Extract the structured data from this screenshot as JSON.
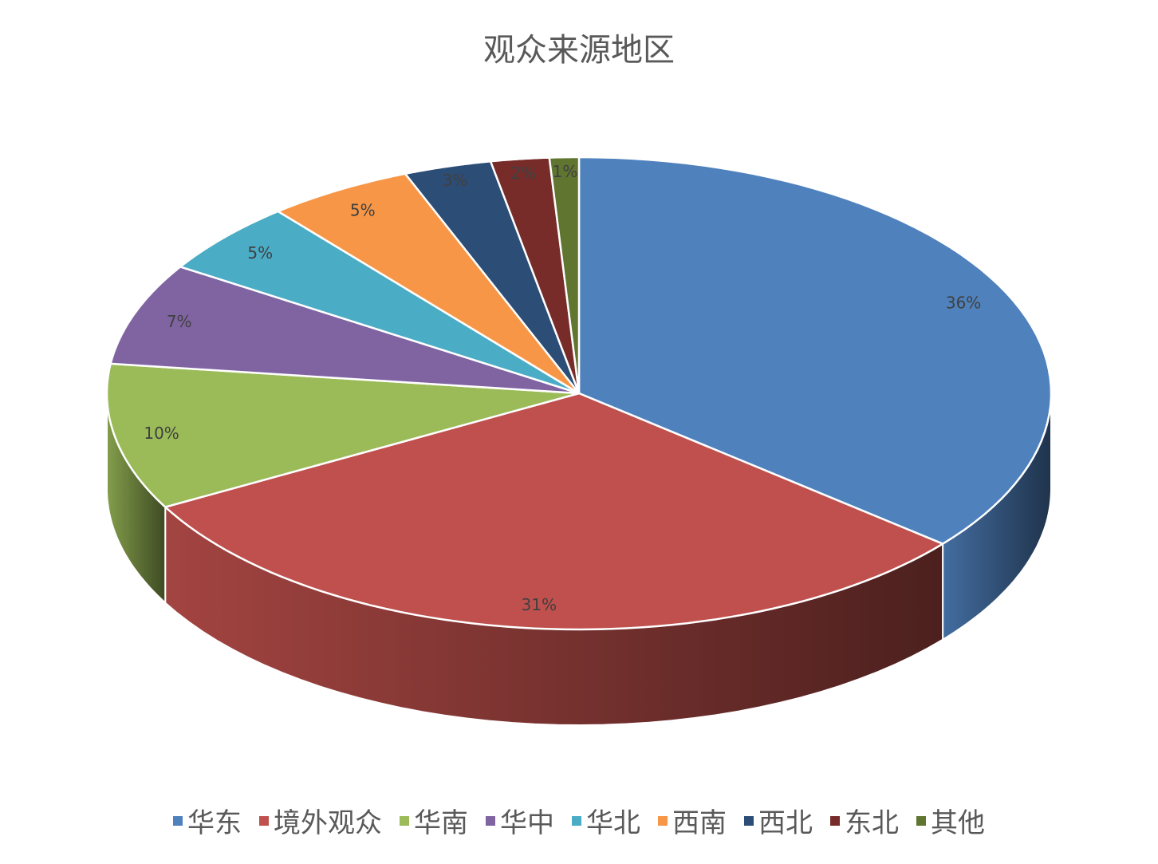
{
  "chart_data": {
    "type": "pie",
    "style": "3d",
    "title": "观众来源地区",
    "categories": [
      "华东",
      "境外观众",
      "华南",
      "华中",
      "华北",
      "西南",
      "西北",
      "东北",
      "其他"
    ],
    "values": [
      36,
      31,
      10,
      7,
      5,
      5,
      3,
      2,
      1
    ],
    "labels": [
      "36%",
      "31%",
      "10%",
      "7%",
      "5%",
      "5%",
      "3%",
      "2%",
      "1%"
    ],
    "colors": [
      "#4F81BD",
      "#C0504D",
      "#9BBB59",
      "#8064A2",
      "#4BACC6",
      "#F79646",
      "#2C4D75",
      "#772C2A",
      "#5F7530"
    ],
    "legend_position": "bottom",
    "label_color": "#404040"
  }
}
